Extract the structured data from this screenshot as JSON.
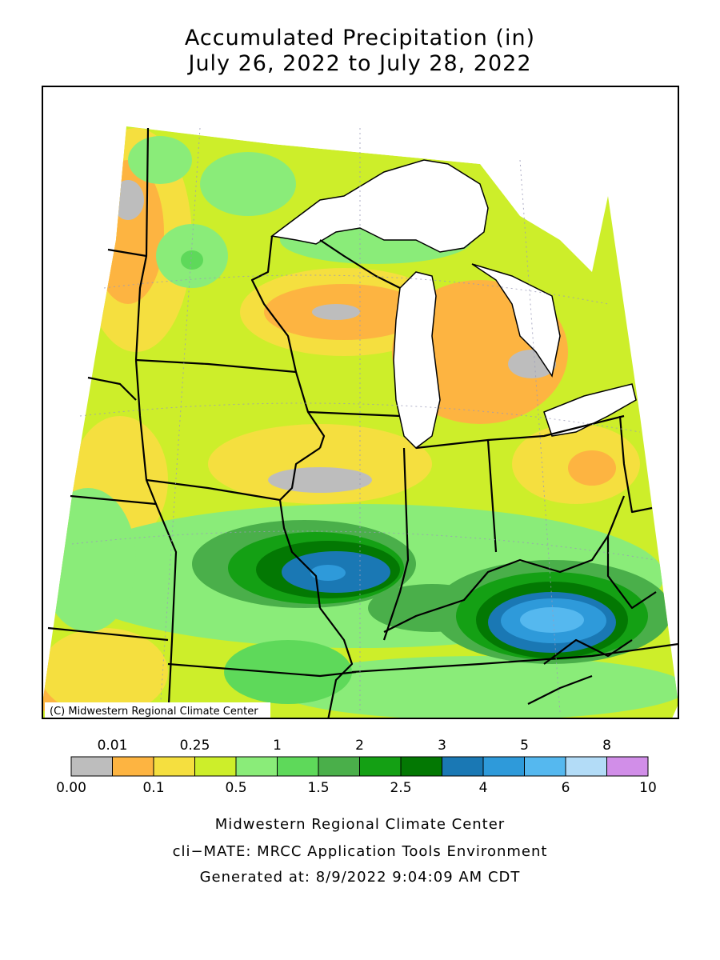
{
  "title": {
    "line1": "Accumulated Precipitation (in)",
    "line2": "July 26, 2022 to July 28, 2022"
  },
  "map": {
    "copyright": "(C) Midwestern Regional Climate Center",
    "region": "Upper Midwest and Great Lakes states"
  },
  "legend": {
    "top_labels": [
      "0.01",
      "0.25",
      "1",
      "2",
      "3",
      "5",
      "8"
    ],
    "bottom_labels": [
      "0.00",
      "0.1",
      "0.5",
      "1.5",
      "2.5",
      "4",
      "6",
      "10"
    ],
    "bins": [
      {
        "range": "0.00-0.01",
        "color": "#bdbdbd"
      },
      {
        "range": "0.01-0.1",
        "color": "#fdb441"
      },
      {
        "range": "0.1-0.25",
        "color": "#f5df3f"
      },
      {
        "range": "0.25-0.5",
        "color": "#cdee2a"
      },
      {
        "range": "0.5-1",
        "color": "#8aec79"
      },
      {
        "range": "1-1.5",
        "color": "#5ed95a"
      },
      {
        "range": "1.5-2",
        "color": "#4aaf4a"
      },
      {
        "range": "2-2.5",
        "color": "#14a014"
      },
      {
        "range": "2.5-3",
        "color": "#037803"
      },
      {
        "range": "3-4",
        "color": "#1a78b4"
      },
      {
        "range": "4-5",
        "color": "#2e9ada"
      },
      {
        "range": "5-6",
        "color": "#55b8ef"
      },
      {
        "range": "6-8",
        "color": "#b3dcf7"
      },
      {
        "range": "8-10",
        "color": "#d18ee8"
      }
    ]
  },
  "footer": {
    "line1": "Midwestern Regional Climate Center",
    "line2": "cli−MATE: MRCC Application Tools Environment",
    "line3": "Generated at: 8/9/2022 9:04:09 AM CDT"
  }
}
